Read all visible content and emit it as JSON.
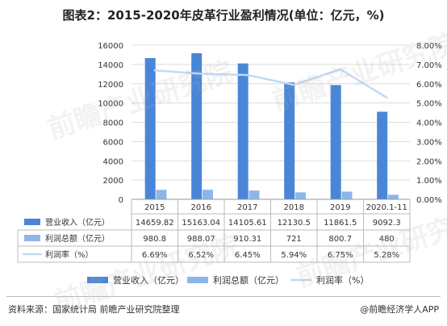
{
  "title": "图表2：2015-2020年皮革行业盈利情况(单位：亿元，%)",
  "source": "资料来源：国家统计局 前瞻产业研究院整理",
  "brand": "@前瞻经济学人APP",
  "watermark": "前瞻产业研究院",
  "colors": {
    "revenue": "#4a86d8",
    "profit": "#8cb6ea",
    "rate": "#c2daf3",
    "grid": "#dcdcdc",
    "axis": "#999999",
    "text": "#333333"
  },
  "chart_data": {
    "type": "bar",
    "categories": [
      "2015",
      "2016",
      "2017",
      "2018",
      "2019",
      "2020.1-11"
    ],
    "series": [
      {
        "name": "营业收入（亿元）",
        "kind": "bar",
        "axis": "left",
        "values": [
          14659.82,
          15163.04,
          14105.61,
          12130.5,
          11861.5,
          9092.3
        ],
        "labels": [
          "14659.82",
          "15163.04",
          "14105.61",
          "12130.5",
          "11861.5",
          "9092.3"
        ]
      },
      {
        "name": "利润总额（亿元）",
        "kind": "bar",
        "axis": "left",
        "values": [
          980.8,
          988.07,
          910.31,
          721,
          800.7,
          480
        ],
        "labels": [
          "980.8",
          "988.07",
          "910.31",
          "721",
          "800.7",
          "480"
        ]
      },
      {
        "name": "利润率（%）",
        "kind": "line",
        "axis": "right",
        "values": [
          6.69,
          6.52,
          6.45,
          5.94,
          6.75,
          5.28
        ],
        "labels": [
          "6.69%",
          "6.52%",
          "6.45%",
          "5.94%",
          "6.75%",
          "5.28%"
        ]
      }
    ],
    "legend_names": [
      "营业收入（亿元）",
      "利润总额（亿元）",
      "利润率（%）"
    ],
    "yleft": {
      "ticks": [
        "0",
        "2000",
        "4000",
        "6000",
        "8000",
        "10000",
        "12000",
        "14000",
        "16000"
      ],
      "min": 0,
      "max": 16000
    },
    "yright": {
      "ticks": [
        "0.00%",
        "1.00%",
        "2.00%",
        "3.00%",
        "4.00%",
        "5.00%",
        "6.00%",
        "7.00%",
        "8.00%"
      ],
      "min": 0,
      "max": 8
    },
    "grid": true,
    "legend_position": "bottom"
  }
}
